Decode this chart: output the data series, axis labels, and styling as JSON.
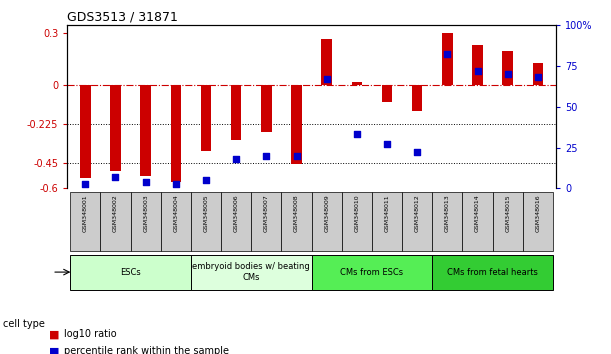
{
  "title": "GDS3513 / 31871",
  "samples": [
    "GSM348001",
    "GSM348002",
    "GSM348003",
    "GSM348004",
    "GSM348005",
    "GSM348006",
    "GSM348007",
    "GSM348008",
    "GSM348009",
    "GSM348010",
    "GSM348011",
    "GSM348012",
    "GSM348013",
    "GSM348014",
    "GSM348015",
    "GSM348016"
  ],
  "log10_ratio": [
    -0.54,
    -0.5,
    -0.53,
    -0.56,
    -0.38,
    -0.32,
    -0.27,
    -0.46,
    0.27,
    0.02,
    -0.1,
    -0.15,
    0.305,
    0.23,
    0.2,
    0.13
  ],
  "percentile_rank": [
    3,
    7,
    4,
    3,
    5,
    18,
    20,
    20,
    67,
    33,
    27,
    22,
    82,
    72,
    70,
    68
  ],
  "cell_type_groups": [
    {
      "label": "ESCs",
      "start": 0,
      "end": 3,
      "color": "#ccffcc"
    },
    {
      "label": "embryoid bodies w/ beating\nCMs",
      "start": 4,
      "end": 7,
      "color": "#ddffdd"
    },
    {
      "label": "CMs from ESCs",
      "start": 8,
      "end": 11,
      "color": "#55ee55"
    },
    {
      "label": "CMs from fetal hearts",
      "start": 12,
      "end": 15,
      "color": "#33cc33"
    }
  ],
  "ylim_left": [
    -0.6,
    0.35
  ],
  "ylim_right": [
    0,
    100
  ],
  "yticks_left": [
    -0.6,
    -0.45,
    -0.225,
    0,
    0.3
  ],
  "ytick_labels_left": [
    "-0.6",
    "-0.45",
    "-0.225",
    "0",
    "0.3"
  ],
  "yticks_right": [
    0,
    25,
    50,
    75,
    100
  ],
  "ytick_labels_right": [
    "0",
    "25",
    "50",
    "75",
    "100%"
  ],
  "dotted_lines": [
    -0.225,
    -0.45
  ],
  "bar_color": "#cc0000",
  "dot_color": "#0000cc",
  "bar_width": 0.35,
  "dot_size": 20,
  "cell_type_label": "cell type",
  "legend_items": [
    {
      "color": "#cc0000",
      "label": "log10 ratio"
    },
    {
      "color": "#0000cc",
      "label": "percentile rank within the sample"
    }
  ]
}
